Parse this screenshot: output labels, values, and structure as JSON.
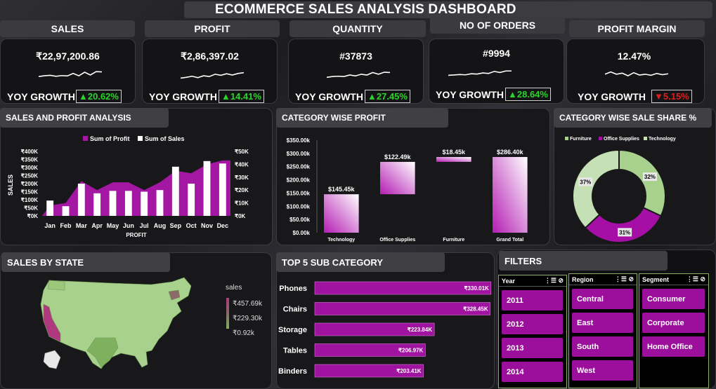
{
  "title": "ECOMMERCE SALES ANALYSIS DASHBOARD",
  "kpis": [
    {
      "label": "SALES",
      "value": "₹22,97,200.86",
      "yoy_label": "YOY GROWTH",
      "yoy": "▲20.62%",
      "direction": "up",
      "trend": [
        0.4,
        0.45,
        0.48,
        0.42,
        0.46,
        0.44,
        0.6,
        0.45,
        0.68,
        0.5,
        0.72,
        0.7
      ]
    },
    {
      "label": "PROFIT",
      "value": "₹2,86,397.02",
      "yoy_label": "YOY GROWTH",
      "yoy": "▲14.41%",
      "direction": "up",
      "trend": [
        0.3,
        0.35,
        0.42,
        0.33,
        0.45,
        0.4,
        0.55,
        0.48,
        0.58,
        0.5,
        0.6,
        0.65
      ]
    },
    {
      "label": "QUANTITY",
      "value": "#37873",
      "yoy_label": "YOY GROWTH",
      "yoy": "▲27.45%",
      "direction": "up",
      "trend": [
        0.35,
        0.4,
        0.42,
        0.4,
        0.5,
        0.44,
        0.55,
        0.5,
        0.66,
        0.55,
        0.68,
        0.66
      ]
    },
    {
      "label": "NO OF ORDERS",
      "value": "#9994",
      "yoy_label": "YOY GROWTH",
      "yoy": "▲28.64%",
      "direction": "up",
      "trend": [
        0.3,
        0.32,
        0.35,
        0.33,
        0.4,
        0.38,
        0.45,
        0.42,
        0.55,
        0.48,
        0.58,
        0.58
      ]
    },
    {
      "label": "PROFIT MARGIN",
      "value": "12.47%",
      "yoy_label": "YOY GROWTH",
      "yoy": "▼5.15%",
      "direction": "down",
      "trend": [
        0.55,
        0.7,
        0.55,
        0.62,
        0.45,
        0.65,
        0.5,
        0.55,
        0.48,
        0.6,
        0.52,
        0.58
      ]
    }
  ],
  "sales_profit": {
    "title": "SALES AND PROFIT ANALYSIS",
    "legend_profit": "Sum of Profit",
    "legend_sales": "Sum of Sales",
    "ylabel": "SALES",
    "xlabel": "PROFIT",
    "left_ticks": [
      "₹400K",
      "₹350K",
      "₹300K",
      "₹250K",
      "₹200K",
      "₹150K",
      "₹100K",
      "₹50K",
      "₹0K"
    ],
    "right_ticks": [
      "₹50K",
      "₹40K",
      "₹30K",
      "₹20K",
      "₹10K",
      "₹0K"
    ],
    "colors": {
      "profit": "#a317a3",
      "sales": "#ffffff"
    }
  },
  "category_profit": {
    "title": "CATEGORY WISE PROFIT",
    "ticks": [
      "$350.00k",
      "$300.00k",
      "$250.00k",
      "$200.00k",
      "$150.00k",
      "$100.00k",
      "$50.00k",
      "$0.00k"
    ],
    "color": "#b41cb4"
  },
  "category_share": {
    "title": "CATEGORY WISE SALE SHARE %",
    "colors": {
      "Furniture": "#a9d18e",
      "Office Supplies": "#a50fa5",
      "Technology": "#c5e0b4"
    }
  },
  "sales_by_state": {
    "title": "SALES BY STATE",
    "legend_title": "sales",
    "legend_values": [
      "₹457.69k",
      "₹229.30k",
      "₹0.92k"
    ],
    "colors": {
      "high": "#b0387f",
      "mid": "#8a6a6a",
      "low": "#8ab46a",
      "land": "#a9d18e"
    }
  },
  "top5": {
    "title": "TOP 5 SUB CATEGORY",
    "color": "#a012a0"
  },
  "filters": {
    "title": "FILTERS",
    "year": {
      "label": "Year",
      "items": [
        "2011",
        "2012",
        "2013",
        "2014"
      ]
    },
    "region": {
      "label": "Region",
      "items": [
        "Central",
        "East",
        "South",
        "West"
      ]
    },
    "segment": {
      "label": "Segment",
      "items": [
        "Consumer",
        "Corporate",
        "Home Office"
      ]
    }
  },
  "chart_data": [
    {
      "type": "bar",
      "title": "SALES AND PROFIT ANALYSIS",
      "xlabel": "PROFIT",
      "ylabel": "SALES",
      "categories": [
        "Jan",
        "Feb",
        "Mar",
        "Apr",
        "May",
        "Jun",
        "Jul",
        "Aug",
        "Sep",
        "Oct",
        "Nov",
        "Dec"
      ],
      "series": [
        {
          "name": "Sum of Sales",
          "kind": "bar",
          "axis": "left",
          "values": [
            95000,
            60000,
            200000,
            140000,
            155000,
            155000,
            150000,
            160000,
            305000,
            200000,
            340000,
            325000
          ]
        },
        {
          "name": "Sum of Profit",
          "kind": "area",
          "axis": "right",
          "values": [
            8000,
            10000,
            27000,
            20000,
            26000,
            26000,
            20000,
            26000,
            35000,
            33000,
            40000,
            43000
          ]
        }
      ],
      "ylim": [
        0,
        400000
      ],
      "y2lim": [
        0,
        50000
      ]
    },
    {
      "type": "bar",
      "subtype": "waterfall",
      "title": "CATEGORY WISE PROFIT",
      "categories": [
        "Technology",
        "Office Supplies",
        "Furniture",
        "Grand Total"
      ],
      "values": [
        145450,
        122490,
        18450,
        286400
      ],
      "labels": [
        "$145.45k",
        "$122.49k",
        "$18.45k",
        "$286.40k"
      ],
      "ylim": [
        0,
        350000
      ]
    },
    {
      "type": "pie",
      "subtype": "donut",
      "title": "CATEGORY WISE SALE SHARE %",
      "categories": [
        "Furniture",
        "Office Supplies",
        "Technology"
      ],
      "values": [
        32,
        31,
        37
      ],
      "labels": [
        "32%",
        "31%",
        "37%"
      ]
    },
    {
      "type": "bar",
      "orientation": "horizontal",
      "title": "TOP 5 SUB CATEGORY",
      "categories": [
        "Phones",
        "Chairs",
        "Storage",
        "Tables",
        "Binders"
      ],
      "values": [
        330010,
        328450,
        223840,
        206970,
        203410
      ],
      "labels": [
        "₹330.01K",
        "₹328.45K",
        "₹223.84K",
        "₹206.97K",
        "₹203.41K"
      ],
      "xlim": [
        0,
        350000
      ]
    }
  ]
}
